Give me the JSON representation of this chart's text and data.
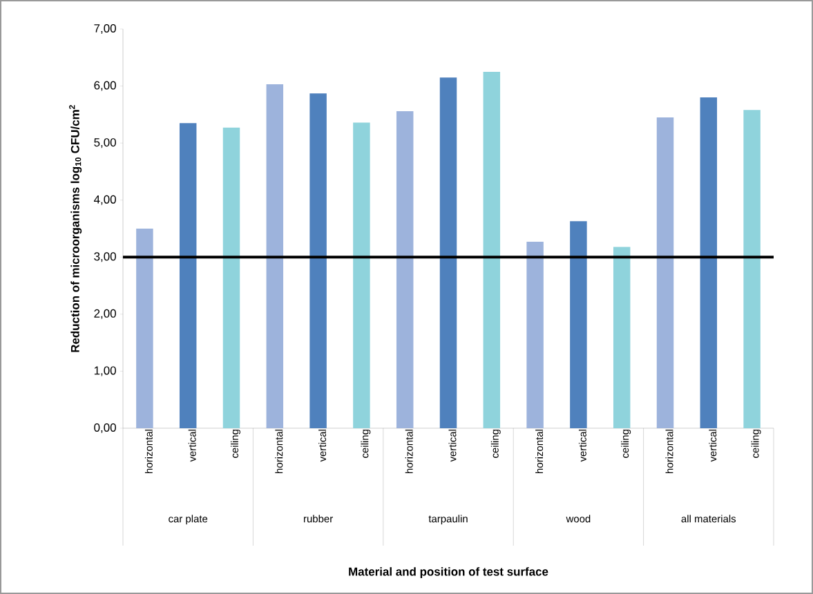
{
  "chart_data": {
    "type": "bar",
    "xlabel": "Material and position of test surface",
    "ylabel": "Reduction of microorganisms log$_{10}$ CFU/cm$^{2}$",
    "categories": [
      "car plate",
      "rubber",
      "tarpaulin",
      "wood",
      "all materials"
    ],
    "series": [
      {
        "name": "horizontal",
        "color": "#9db3dc",
        "values": [
          3.5,
          6.03,
          5.56,
          3.27,
          5.45
        ]
      },
      {
        "name": "vertical",
        "color": "#4f81bd",
        "values": [
          5.35,
          5.87,
          6.15,
          3.63,
          5.8
        ]
      },
      {
        "name": "ceiling",
        "color": "#8fd3dc",
        "values": [
          5.27,
          5.36,
          6.25,
          3.18,
          5.58
        ]
      }
    ],
    "ylim": [
      0,
      7
    ],
    "yticks": [
      {
        "value": 0,
        "label": "0,00"
      },
      {
        "value": 1,
        "label": "1,00"
      },
      {
        "value": 2,
        "label": "2,00"
      },
      {
        "value": 3,
        "label": "3,00"
      },
      {
        "value": 4,
        "label": "4,00"
      },
      {
        "value": 5,
        "label": "5,00"
      },
      {
        "value": 6,
        "label": "6,00"
      },
      {
        "value": 7,
        "label": "7,00"
      }
    ],
    "ref_lines": [
      {
        "axis": "y",
        "value": 3,
        "color": "#000000",
        "line_style": "solid"
      }
    ]
  }
}
